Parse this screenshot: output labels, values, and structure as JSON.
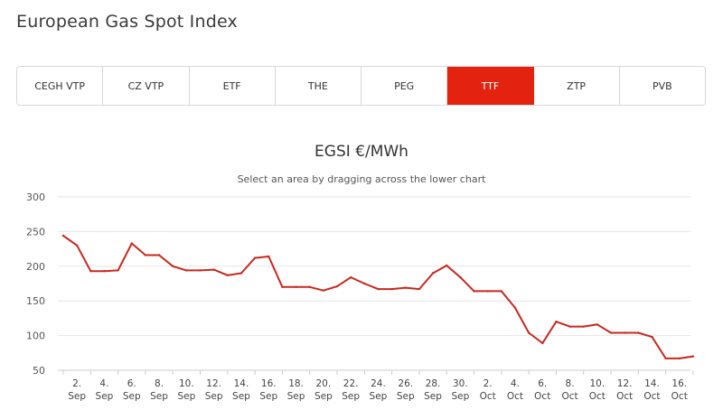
{
  "page": {
    "title": "European Gas Spot Index"
  },
  "tabs": [
    {
      "label": "CEGH VTP",
      "active": false
    },
    {
      "label": "CZ VTP",
      "active": false
    },
    {
      "label": "ETF",
      "active": false
    },
    {
      "label": "THE",
      "active": false
    },
    {
      "label": "PEG",
      "active": false
    },
    {
      "label": "TTF",
      "active": true
    },
    {
      "label": "ZTP",
      "active": false
    },
    {
      "label": "PVB",
      "active": false
    }
  ],
  "colors": {
    "accent": "#e3220f",
    "line": "#c8281e",
    "grid": "#e6e6e6"
  },
  "chart_data": {
    "type": "line",
    "title": "EGSI €/MWh",
    "subtitle": "Select an area by dragging across the lower chart",
    "ylim": [
      50,
      300
    ],
    "yticks": [
      50,
      100,
      150,
      200,
      250,
      300
    ],
    "x_tick_labels": [
      [
        "2.",
        "Sep"
      ],
      [
        "4.",
        "Sep"
      ],
      [
        "6.",
        "Sep"
      ],
      [
        "8.",
        "Sep"
      ],
      [
        "10.",
        "Sep"
      ],
      [
        "12.",
        "Sep"
      ],
      [
        "14.",
        "Sep"
      ],
      [
        "16.",
        "Sep"
      ],
      [
        "18.",
        "Sep"
      ],
      [
        "20.",
        "Sep"
      ],
      [
        "22.",
        "Sep"
      ],
      [
        "24.",
        "Sep"
      ],
      [
        "26.",
        "Sep"
      ],
      [
        "28.",
        "Sep"
      ],
      [
        "30.",
        "Sep"
      ],
      [
        "2.",
        "Oct"
      ],
      [
        "4.",
        "Oct"
      ],
      [
        "6.",
        "Oct"
      ],
      [
        "8.",
        "Oct"
      ],
      [
        "10.",
        "Oct"
      ],
      [
        "12.",
        "Oct"
      ],
      [
        "14.",
        "Oct"
      ],
      [
        "16.",
        "Oct"
      ]
    ],
    "series": [
      {
        "x": [
          "Sep 1",
          "Sep 2",
          "Sep 3",
          "Sep 4",
          "Sep 5",
          "Sep 6",
          "Sep 7",
          "Sep 8",
          "Sep 9",
          "Sep 10",
          "Sep 11",
          "Sep 12",
          "Sep 13",
          "Sep 14",
          "Sep 15",
          "Sep 16",
          "Sep 17",
          "Sep 18",
          "Sep 19",
          "Sep 20",
          "Sep 21",
          "Sep 22",
          "Sep 23",
          "Sep 24",
          "Sep 25",
          "Sep 26",
          "Sep 27",
          "Sep 28",
          "Sep 29",
          "Sep 30",
          "Oct 1",
          "Oct 2",
          "Oct 3",
          "Oct 4",
          "Oct 5",
          "Oct 6",
          "Oct 7",
          "Oct 8",
          "Oct 9",
          "Oct 10",
          "Oct 11",
          "Oct 12",
          "Oct 13",
          "Oct 14",
          "Oct 15",
          "Oct 16",
          "Oct 17"
        ],
        "values": [
          244,
          230,
          193,
          193,
          194,
          233,
          216,
          216,
          200,
          194,
          194,
          195,
          187,
          190,
          212,
          214,
          170,
          170,
          170,
          165,
          171,
          184,
          175,
          167,
          167,
          169,
          167,
          190,
          201,
          184,
          164,
          164,
          164,
          140,
          104,
          89,
          120,
          113,
          113,
          116,
          104,
          104,
          104,
          98,
          67,
          67,
          70
        ]
      }
    ]
  }
}
